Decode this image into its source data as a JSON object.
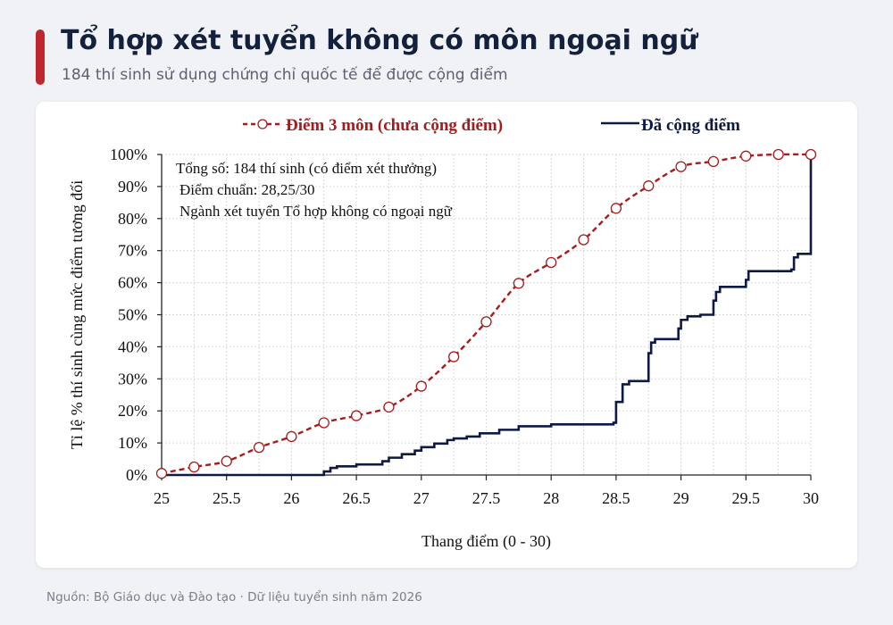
{
  "header": {
    "title": "Tổ hợp xét tuyển không có môn ngoại ngữ",
    "subtitle": "184 thí sinh sử dụng chứng chỉ quốc tế để được cộng điểm"
  },
  "footer": {
    "source": "Nguồn: Bộ Giáo dục và Đào tạo · Dữ liệu tuyển sinh năm 2026"
  },
  "colors": {
    "accent": "#c0262d",
    "title": "#14213d",
    "series_before": "#a51c1c",
    "series_after": "#0d1a45"
  },
  "chart_data": {
    "type": "line",
    "xlabel": "Thang điểm (0 - 30)",
    "ylabel": "Tỉ lệ % thí sinh cùng mức điểm tương đối",
    "xlim": [
      25,
      30
    ],
    "ylim": [
      0,
      100
    ],
    "x_ticks": [
      "25",
      "25.5",
      "26",
      "26.5",
      "27",
      "27.5",
      "28",
      "28.5",
      "29",
      "29.5",
      "30"
    ],
    "y_ticks": [
      "0%",
      "10%",
      "20%",
      "30%",
      "40%",
      "50%",
      "60%",
      "70%",
      "80%",
      "90%",
      "100%"
    ],
    "grid": true,
    "legend_position": "top",
    "annotations": [
      "Tổng số: 184 thí sinh  (có điểm xét thưởng)",
      "Điểm chuẩn: 28,25/30",
      "Ngành xét tuyển Tổ hợp không có ngoại ngữ"
    ],
    "series": [
      {
        "name": "Điểm 3 môn (chưa cộng điểm)",
        "style": "dashed-markers",
        "x": [
          25,
          25.25,
          25.5,
          25.75,
          26,
          26.25,
          26.5,
          26.75,
          27,
          27.25,
          27.5,
          27.75,
          28,
          28.25,
          28.5,
          28.75,
          29,
          29.25,
          29.5,
          29.75,
          30
        ],
        "y": [
          0.5,
          2.5,
          4.3,
          8.6,
          12,
          16.3,
          18.5,
          21.2,
          27.7,
          36.9,
          47.8,
          59.8,
          66.3,
          73.4,
          83.2,
          90.2,
          96.2,
          97.8,
          99.5,
          100,
          100
        ]
      },
      {
        "name": "Đã cộng điểm",
        "style": "step",
        "x": [
          25,
          26.25,
          26.3,
          26.35,
          26.5,
          26.7,
          26.75,
          26.85,
          26.95,
          27.0,
          27.1,
          27.2,
          27.25,
          27.35,
          27.45,
          27.6,
          27.75,
          27.95,
          28.0,
          28.48,
          28.5,
          28.55,
          28.6,
          28.75,
          28.77,
          28.8,
          28.98,
          29.0,
          29.05,
          29.15,
          29.25,
          29.27,
          29.3,
          29.5,
          29.52,
          29.55,
          29.85,
          29.87,
          29.9,
          29.99,
          30
        ],
        "y": [
          0,
          1.1,
          2.2,
          2.7,
          3.3,
          4.3,
          5.4,
          6.5,
          7.6,
          8.7,
          9.8,
          10.9,
          11.4,
          12.0,
          13.0,
          14.1,
          15.2,
          15.2,
          15.8,
          16.3,
          22.8,
          28.3,
          29.3,
          38.0,
          41.3,
          42.4,
          45.7,
          48.4,
          49.5,
          50.0,
          54.4,
          57.1,
          58.7,
          60.9,
          63.6,
          63.6,
          64.1,
          67.9,
          69.0,
          69.0,
          100
        ]
      }
    ]
  }
}
